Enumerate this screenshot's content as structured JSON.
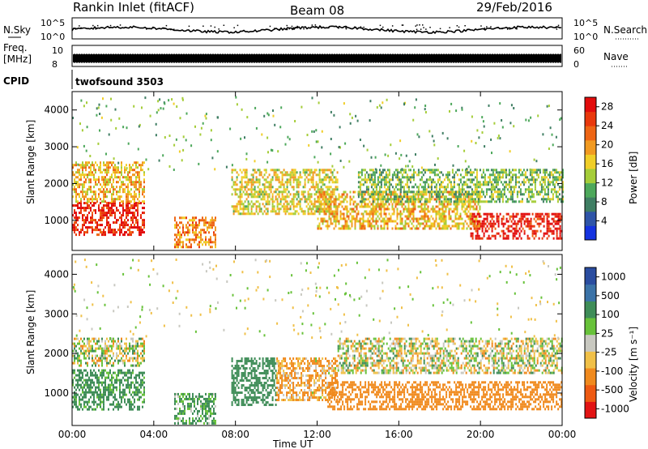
{
  "header": {
    "station": "Rankin Inlet (fitACF)",
    "beam": "Beam 08",
    "date": "29/Feb/2016"
  },
  "top_panels": {
    "nsky_label": "N.Sky",
    "nsky_ticks": [
      "10^5",
      "10^0"
    ],
    "nsearch_label": "N.Search",
    "freq_label_1": "Freq.",
    "freq_label_2": "[MHz]",
    "freq_ticks": [
      "10",
      "8"
    ],
    "nave_label": "Nave",
    "nave_ticks": [
      "60",
      "0"
    ],
    "cpid_label": "CPID",
    "cpid_value": "twofsound 3503"
  },
  "chart_data": [
    {
      "type": "heatmap",
      "title": "",
      "xlabel": "",
      "ylabel": "Slant Range [km]",
      "xlim": [
        0,
        24
      ],
      "ylim": [
        180,
        4500
      ],
      "y_ticks": [
        "1000",
        "2000",
        "3000",
        "4000"
      ],
      "colorbar": {
        "label": "Power [dB]",
        "ticks": [
          "4",
          "8",
          "12",
          "16",
          "20",
          "24",
          "28"
        ],
        "colors": [
          "#1533e0",
          "#2f55a8",
          "#3f7e63",
          "#4da85b",
          "#a5cd39",
          "#f0ce28",
          "#f19a21",
          "#ee6514",
          "#e9380c",
          "#e20c0c"
        ]
      },
      "regions": [
        {
          "t0": 0.0,
          "t1": 3.5,
          "r0": 600,
          "r1": 1500,
          "value": 27
        },
        {
          "t0": 0.0,
          "t1": 3.5,
          "r0": 1500,
          "r1": 2600,
          "value": 18
        },
        {
          "t0": 5.0,
          "t1": 7.0,
          "r0": 250,
          "r1": 1100,
          "value": 20
        },
        {
          "t0": 7.8,
          "t1": 13.0,
          "r0": 1200,
          "r1": 2400,
          "value": 16
        },
        {
          "t0": 12.0,
          "t1": 20.0,
          "r0": 800,
          "r1": 1800,
          "value": 18
        },
        {
          "t0": 19.5,
          "t1": 24.0,
          "r0": 500,
          "r1": 1200,
          "value": 28
        },
        {
          "t0": 14.0,
          "t1": 24.0,
          "r0": 1500,
          "r1": 2400,
          "value": 12
        }
      ]
    },
    {
      "type": "heatmap",
      "title": "",
      "xlabel": "Time UT",
      "ylabel": "Slant Range [km]",
      "xlim": [
        0,
        24
      ],
      "ylim": [
        180,
        4500
      ],
      "x_ticks": [
        "00:00",
        "04:00",
        "08:00",
        "12:00",
        "16:00",
        "20:00",
        "00:00"
      ],
      "y_ticks": [
        "1000",
        "2000",
        "3000",
        "4000"
      ],
      "colorbar": {
        "label": "Velocity [m s⁻¹]",
        "ticks": [
          "1000",
          "500",
          "100",
          "25",
          "-25",
          "-100",
          "-500",
          "-1000"
        ],
        "colors": [
          "#2a4da0",
          "#3b73a8",
          "#3f8d58",
          "#68c23a",
          "#c8c8c0",
          "#f0c048",
          "#f08a1e",
          "#ee5a12",
          "#e21414"
        ]
      },
      "regions": [
        {
          "t0": 0.0,
          "t1": 3.5,
          "r0": 600,
          "r1": 1600,
          "value": 200
        },
        {
          "t0": 0.0,
          "t1": 3.5,
          "r0": 1700,
          "r1": 2400,
          "value": 0
        },
        {
          "t0": 5.0,
          "t1": 7.0,
          "r0": 250,
          "r1": 1000,
          "value": 150
        },
        {
          "t0": 7.8,
          "t1": 10.0,
          "r0": 700,
          "r1": 1900,
          "value": 250
        },
        {
          "t0": 10.0,
          "t1": 13.0,
          "r0": 800,
          "r1": 1900,
          "value": -120
        },
        {
          "t0": 13.0,
          "t1": 24.0,
          "r0": 1500,
          "r1": 2400,
          "value": 0
        },
        {
          "t0": 12.5,
          "t1": 24.0,
          "r0": 600,
          "r1": 1300,
          "value": -300
        }
      ]
    }
  ]
}
